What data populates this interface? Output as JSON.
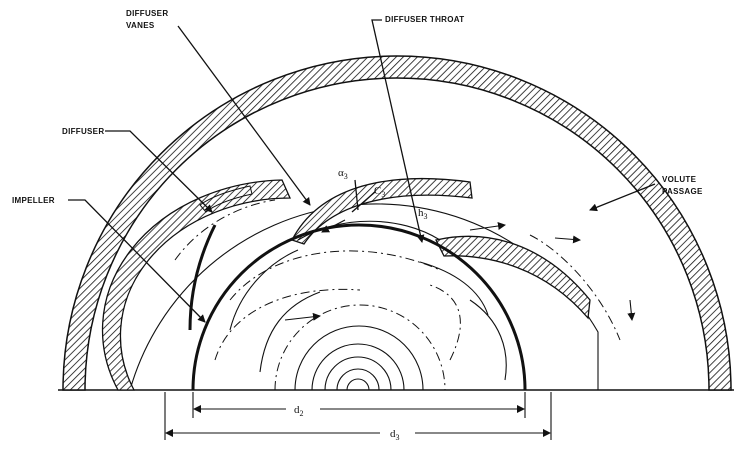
{
  "labels": {
    "diffuser_vanes": [
      "DIFFUSER",
      "VANES"
    ],
    "diffuser_throat": "DIFFUSER THROAT",
    "diffuser": "DIFFUSER",
    "impeller": "IMPELLER",
    "volute_passage": [
      "VOLUTE",
      "PASSAGE"
    ]
  },
  "symbols": {
    "alpha3": "α",
    "alpha3_sub": "3",
    "c3": "C",
    "c3_sub": "3",
    "h3": "h",
    "h3_sub": "3",
    "d2": "d",
    "d2_sub": "2",
    "d3": "d",
    "d3_sub": "3"
  }
}
